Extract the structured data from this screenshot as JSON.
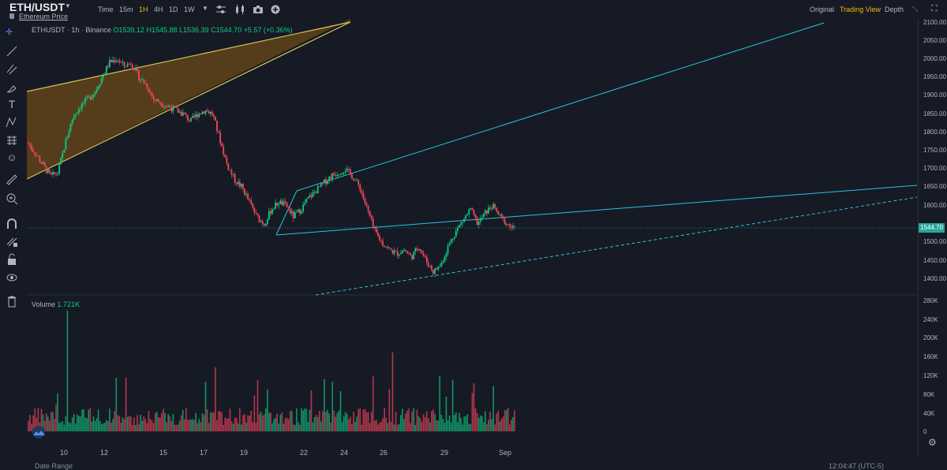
{
  "header": {
    "symbol": "ETH/USDT",
    "subtitle": "Ethereum Price",
    "timeframes": [
      "Time",
      "15m",
      "1H",
      "4H",
      "1D",
      "1W"
    ],
    "active_timeframe": "1H",
    "views": [
      "Original",
      "Trading View",
      "Depth"
    ],
    "active_view": "Trading View"
  },
  "legend": {
    "pair": "ETHUSDT · 1h · Binance",
    "o": "O1539.12",
    "h": "H1545.88",
    "l": "L1536.39",
    "c": "C1544.70",
    "chg": "+5.57 (+0.36%)"
  },
  "volume": {
    "label": "Volume",
    "value": "1.721K"
  },
  "colors": {
    "up": "#0ecb81",
    "down": "#f6465d",
    "accent": "#f0b90b",
    "trend": "#26c6da",
    "wedge": "#f0b90b"
  },
  "price_axis": [
    "2100.00",
    "2050.00",
    "2000.00",
    "1950.00",
    "1900.00",
    "1850.00",
    "1800.00",
    "1750.00",
    "1700.00",
    "1650.00",
    "1600.00",
    "1550.00",
    "1500.00",
    "1450.00",
    "1400.00"
  ],
  "current_price": "1544.70",
  "volume_axis": [
    "280K",
    "240K",
    "200K",
    "160K",
    "120K",
    "80K",
    "40K",
    "0"
  ],
  "time_axis": [
    "10",
    "12",
    "15",
    "17",
    "19",
    "22",
    "24",
    "26",
    "29",
    "Sep"
  ],
  "footer": {
    "left": "Date Range",
    "right": "12:04:47 (UTC-5)"
  },
  "chart_data": {
    "type": "candlestick",
    "series": [
      {
        "name": "ETHUSDT",
        "close_path": [
          1780,
          1750,
          1720,
          1690,
          1700,
          1780,
          1850,
          1880,
          1900,
          1920,
          1960,
          2000,
          2010,
          1990,
          2000,
          1960,
          1940,
          1900,
          1890,
          1880,
          1870,
          1860,
          1840,
          1860,
          1870,
          1860,
          1790,
          1720,
          1680,
          1660,
          1620,
          1580,
          1560,
          1600,
          1620,
          1610,
          1580,
          1600,
          1630,
          1650,
          1670,
          1690,
          1700,
          1710,
          1690,
          1660,
          1600,
          1540,
          1510,
          1490,
          1480,
          1490,
          1470,
          1500,
          1460,
          1430,
          1450,
          1500,
          1540,
          1570,
          1600,
          1560,
          1590,
          1610,
          1580,
          1560,
          1545
        ]
      }
    ],
    "ylim": [
      1380,
      2110
    ],
    "annotations": [
      "rising wedge",
      "ascending channel",
      "trendline",
      "dashed support"
    ]
  }
}
